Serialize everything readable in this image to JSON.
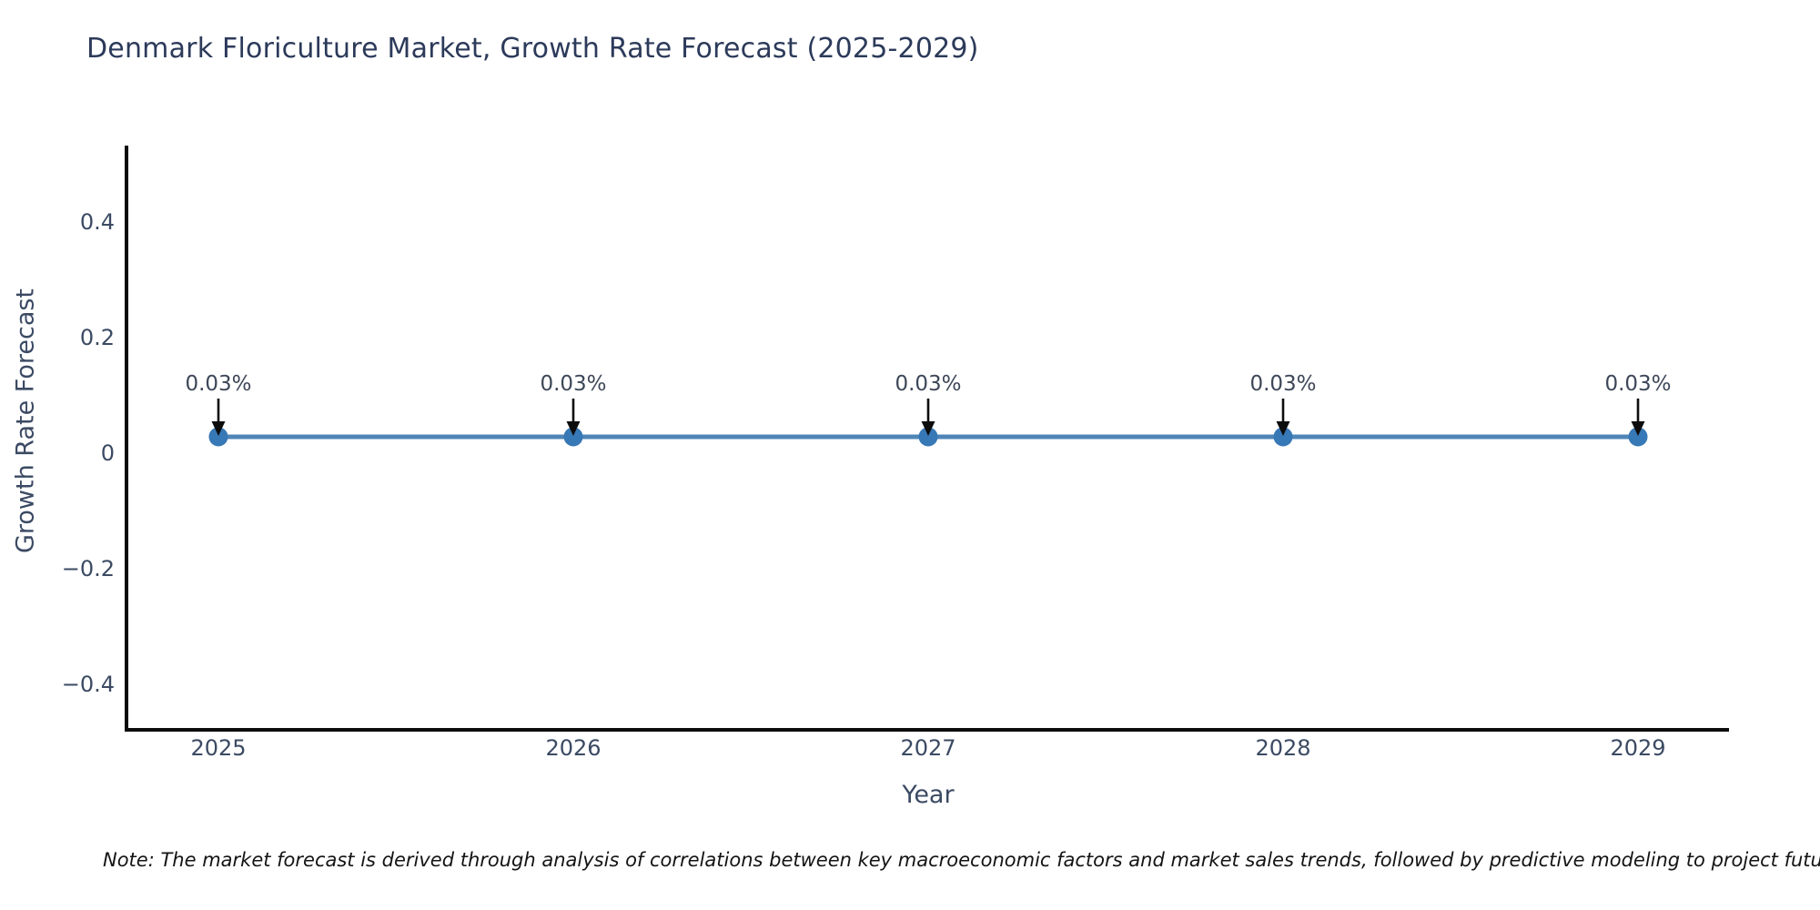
{
  "title": "Denmark Floriculture Market, Growth Rate Forecast (2025-2029)",
  "note": "Note: The market forecast is derived through analysis of correlations between key macroeconomic factors and market sales trends, followed by predictive modeling to project future sales.",
  "chart_data": {
    "type": "line",
    "title": "Denmark Floriculture Market, Growth Rate Forecast (2025-2029)",
    "xlabel": "Year",
    "ylabel": "Growth Rate Forecast",
    "x": [
      2025,
      2026,
      2027,
      2028,
      2029
    ],
    "values": [
      0.03,
      0.03,
      0.03,
      0.03,
      0.03
    ],
    "unit": "%",
    "point_labels": [
      "0.03%",
      "0.03%",
      "0.03%",
      "0.03%",
      "0.03%"
    ],
    "xtick_labels": [
      "2025",
      "2026",
      "2027",
      "2028",
      "2029"
    ],
    "ytick_values": [
      0.4,
      0.2,
      0,
      -0.2,
      -0.4
    ],
    "ytick_labels": [
      "0.4",
      "0.2",
      "0",
      "−0.2",
      "−0.4"
    ],
    "ylim": [
      -0.48,
      0.53
    ],
    "grid": false,
    "legend": false,
    "annotation_arrows": true,
    "colors": {
      "line": "#4f86b8",
      "marker": "#3778b6",
      "arrow": "#0d0d0d",
      "annotation_text": "#3d4758",
      "axis_spine": "#0d0d0d",
      "tick_text": "#3b4a63",
      "title_text": "#2c3a5a"
    }
  }
}
